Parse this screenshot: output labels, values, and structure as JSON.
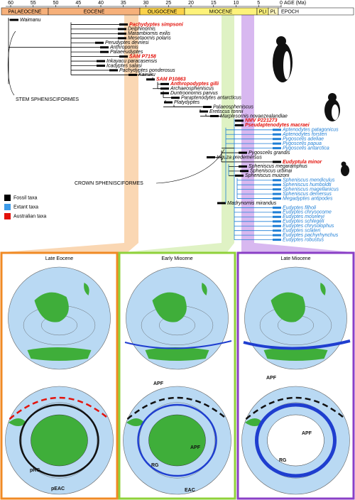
{
  "axis": {
    "label": "AGE (Ma)",
    "ticks": [
      60,
      55,
      50,
      45,
      40,
      35,
      30,
      25,
      20,
      15,
      10,
      5,
      0
    ]
  },
  "epochs": [
    "PALAEOCENE",
    "EOCENE",
    "OLIGOCENE",
    "MIOCENE",
    "PLI",
    "PL",
    "EPOCH"
  ],
  "taxa": [
    {
      "name": "Waimanu",
      "color": "#000000"
    },
    {
      "name": "Pachydyptes simpsoni",
      "color": "#e3120b"
    },
    {
      "name": "Delphinornis",
      "color": "#000000"
    },
    {
      "name": "Marambiornis exilis",
      "color": "#000000"
    },
    {
      "name": "Mesetaornis polaris",
      "color": "#000000"
    },
    {
      "name": "Perudyptes devriesi",
      "color": "#000000"
    },
    {
      "name": "Anthropornis",
      "color": "#000000"
    },
    {
      "name": "Palaeeudyptes",
      "color": "#000000"
    },
    {
      "name": "SAM P7158",
      "color": "#e3120b"
    },
    {
      "name": "Inkayacu paracasensis",
      "color": "#000000"
    },
    {
      "name": "Icadyptes salasi",
      "color": "#000000"
    },
    {
      "name": "Pachydyptes ponderosus",
      "color": "#000000"
    },
    {
      "name": "Kairuku",
      "color": "#000000"
    },
    {
      "name": "SAM P10863",
      "color": "#e3120b"
    },
    {
      "name": "Anthropodyptes gilli",
      "color": "#e3120b"
    },
    {
      "name": "Archaeospheniscus",
      "color": "#000000"
    },
    {
      "name": "Duntroonornis parvus",
      "color": "#000000"
    },
    {
      "name": "Paraptenodytes antarcticus",
      "color": "#000000"
    },
    {
      "name": "Platydyptes",
      "color": "#000000"
    },
    {
      "name": "Palaeospheniscus",
      "color": "#000000"
    },
    {
      "name": "Eretiscus tonnii",
      "color": "#000000"
    },
    {
      "name": "Marplesornis novaezealandiae",
      "color": "#000000"
    },
    {
      "name": "NMV P221273",
      "color": "#e3120b"
    },
    {
      "name": "Pseudaptenodytes macraei",
      "color": "#e3120b"
    },
    {
      "name": "Aptenodytes patagonicus",
      "color": "#1f7fd6"
    },
    {
      "name": "Aptenodytes forsteri",
      "color": "#1f7fd6"
    },
    {
      "name": "Pygoscelis adeliae",
      "color": "#1f7fd6"
    },
    {
      "name": "Pygoscelis papua",
      "color": "#1f7fd6"
    },
    {
      "name": "Pygoscelis antarctica",
      "color": "#1f7fd6"
    },
    {
      "name": "Pygoscelis grandis",
      "color": "#000000"
    },
    {
      "name": "Inguza predemersus",
      "color": "#000000"
    },
    {
      "name": "Eudyptula minor",
      "color": "#e3120b"
    },
    {
      "name": "Spheniscus megaramphus",
      "color": "#000000"
    },
    {
      "name": "Spheniscus urbinai",
      "color": "#000000"
    },
    {
      "name": "Spheniscus muizoni",
      "color": "#000000"
    },
    {
      "name": "Spheniscus mendiculus",
      "color": "#1f7fd6"
    },
    {
      "name": "Spheniscus humboldti",
      "color": "#1f7fd6"
    },
    {
      "name": "Spheniscus magellanicus",
      "color": "#1f7fd6"
    },
    {
      "name": "Spheniscus demersus",
      "color": "#1f7fd6"
    },
    {
      "name": "Megadyptes antipodes",
      "color": "#1f7fd6"
    },
    {
      "name": "Madrynornis mirandus",
      "color": "#000000"
    },
    {
      "name": "Eudyptes filholi",
      "color": "#1f7fd6"
    },
    {
      "name": "Eudyptes chrysocome",
      "color": "#1f7fd6"
    },
    {
      "name": "Eudyptes moseleyi",
      "color": "#1f7fd6"
    },
    {
      "name": "Eudyptes schlegeli",
      "color": "#1f7fd6"
    },
    {
      "name": "Eudyptes chrysolophus",
      "color": "#1f7fd6"
    },
    {
      "name": "Eudyptes sclateri",
      "color": "#1f7fd6"
    },
    {
      "name": "Eudyptes pachyrhynchus",
      "color": "#1f7fd6"
    },
    {
      "name": "Eudyptes robustus",
      "color": "#1f7fd6"
    }
  ],
  "clades": {
    "stem": "STEM SPHENISCIFORMES",
    "crown": "CROWN SPHENISCIFORMES"
  },
  "legend": [
    {
      "label": "Fossil taxa",
      "color": "#000000"
    },
    {
      "label": "Extant taxa",
      "color": "#3d9be9"
    },
    {
      "label": "Australian taxa",
      "color": "#e3120b"
    }
  ],
  "panels": [
    {
      "title": "Late Eocene",
      "color": "#f08a24",
      "labels": [
        "pRG",
        "pEAC"
      ]
    },
    {
      "title": "Early Miocene",
      "color": "#8fd13a",
      "labels": [
        "APF",
        "RG",
        "APF",
        "EAC"
      ]
    },
    {
      "title": "Late Miocene",
      "color": "#8a3fc6",
      "labels": [
        "APF",
        "RG",
        "APF"
      ]
    }
  ]
}
